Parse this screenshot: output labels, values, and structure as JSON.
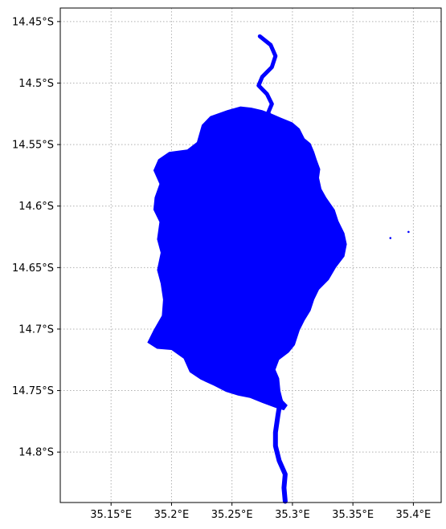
{
  "map": {
    "extent": {
      "lon_min": 35.108,
      "lon_max": 35.423,
      "lat_min": -14.841,
      "lat_max": -14.439
    },
    "x_ticks": [
      {
        "value": 35.15,
        "label": "35.15°E"
      },
      {
        "value": 35.2,
        "label": "35.2°E"
      },
      {
        "value": 35.25,
        "label": "35.25°E"
      },
      {
        "value": 35.3,
        "label": "35.3°E"
      },
      {
        "value": 35.35,
        "label": "35.35°E"
      },
      {
        "value": 35.4,
        "label": "35.4°E"
      }
    ],
    "y_ticks": [
      {
        "value": -14.45,
        "label": "14.45°S"
      },
      {
        "value": -14.5,
        "label": "14.5°S"
      },
      {
        "value": -14.55,
        "label": "14.55°S"
      },
      {
        "value": -14.6,
        "label": "14.6°S"
      },
      {
        "value": -14.65,
        "label": "14.65°S"
      },
      {
        "value": -14.7,
        "label": "14.7°S"
      },
      {
        "value": -14.75,
        "label": "14.75°S"
      },
      {
        "value": -14.8,
        "label": "14.8°S"
      }
    ],
    "gridlines": true,
    "water_color": "#0000ff",
    "grid_color": "#b0b0b0",
    "features": {
      "lake_outline": [
        [
          35.3,
          -14.532
        ],
        [
          35.306,
          -14.537
        ],
        [
          35.31,
          -14.545
        ],
        [
          35.315,
          -14.549
        ],
        [
          35.318,
          -14.556
        ],
        [
          35.32,
          -14.562
        ],
        [
          35.323,
          -14.57
        ],
        [
          35.322,
          -14.577
        ],
        [
          35.324,
          -14.586
        ],
        [
          35.328,
          -14.593
        ],
        [
          35.335,
          -14.603
        ],
        [
          35.338,
          -14.612
        ],
        [
          35.343,
          -14.622
        ],
        [
          35.345,
          -14.631
        ],
        [
          35.343,
          -14.641
        ],
        [
          35.336,
          -14.65
        ],
        [
          35.33,
          -14.66
        ],
        [
          35.322,
          -14.668
        ],
        [
          35.318,
          -14.676
        ],
        [
          35.315,
          -14.685
        ],
        [
          35.31,
          -14.693
        ],
        [
          35.306,
          -14.701
        ],
        [
          35.302,
          -14.713
        ],
        [
          35.297,
          -14.719
        ],
        [
          35.289,
          -14.725
        ],
        [
          35.286,
          -14.733
        ],
        [
          35.289,
          -14.74
        ],
        [
          35.29,
          -14.75
        ],
        [
          35.292,
          -14.758
        ],
        [
          35.296,
          -14.762
        ],
        [
          35.293,
          -14.766
        ],
        [
          35.286,
          -14.764
        ],
        [
          35.275,
          -14.76
        ],
        [
          35.265,
          -14.756
        ],
        [
          35.255,
          -14.754
        ],
        [
          35.245,
          -14.751
        ],
        [
          35.235,
          -14.746
        ],
        [
          35.224,
          -14.741
        ],
        [
          35.215,
          -14.735
        ],
        [
          35.21,
          -14.724
        ],
        [
          35.2,
          -14.717
        ],
        [
          35.188,
          -14.716
        ],
        [
          35.18,
          -14.711
        ],
        [
          35.185,
          -14.701
        ],
        [
          35.192,
          -14.689
        ],
        [
          35.193,
          -14.676
        ],
        [
          35.191,
          -14.663
        ],
        [
          35.188,
          -14.652
        ],
        [
          35.191,
          -14.638
        ],
        [
          35.188,
          -14.627
        ],
        [
          35.19,
          -14.613
        ],
        [
          35.185,
          -14.603
        ],
        [
          35.186,
          -14.593
        ],
        [
          35.19,
          -14.582
        ],
        [
          35.185,
          -14.571
        ],
        [
          35.189,
          -14.562
        ],
        [
          35.198,
          -14.556
        ],
        [
          35.213,
          -14.554
        ],
        [
          35.221,
          -14.548
        ],
        [
          35.225,
          -14.534
        ],
        [
          35.232,
          -14.527
        ],
        [
          35.246,
          -14.522
        ],
        [
          35.257,
          -14.519
        ],
        [
          35.266,
          -14.52
        ],
        [
          35.275,
          -14.522
        ],
        [
          35.283,
          -14.525
        ],
        [
          35.29,
          -14.528
        ]
      ],
      "river_north": [
        [
          35.273,
          -14.462
        ],
        [
          35.282,
          -14.469
        ],
        [
          35.286,
          -14.478
        ],
        [
          35.283,
          -14.487
        ],
        [
          35.275,
          -14.495
        ],
        [
          35.272,
          -14.502
        ],
        [
          35.279,
          -14.509
        ],
        [
          35.283,
          -14.517
        ],
        [
          35.28,
          -14.524
        ],
        [
          35.284,
          -14.532
        ],
        [
          35.284,
          -14.541
        ]
      ],
      "river_south": [
        [
          35.29,
          -14.758
        ],
        [
          35.288,
          -14.77
        ],
        [
          35.286,
          -14.784
        ],
        [
          35.286,
          -14.795
        ],
        [
          35.289,
          -14.807
        ],
        [
          35.294,
          -14.818
        ],
        [
          35.293,
          -14.829
        ],
        [
          35.294,
          -14.84
        ]
      ],
      "islets": [
        [
          35.285,
          -14.555
        ],
        [
          35.292,
          -14.563
        ],
        [
          35.381,
          -14.626
        ],
        [
          35.396,
          -14.621
        ]
      ]
    }
  }
}
